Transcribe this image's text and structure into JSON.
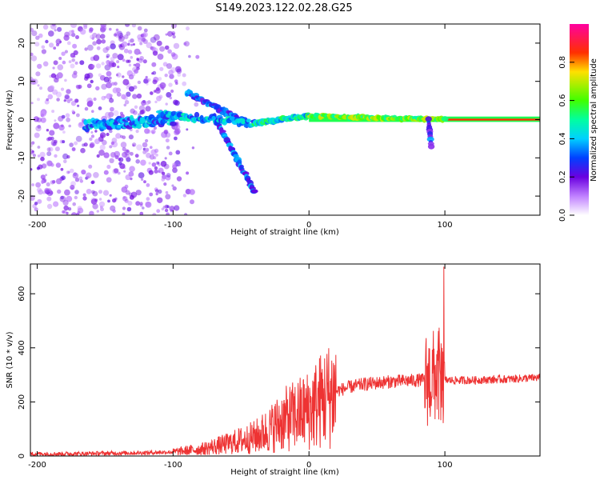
{
  "title": "S149.2023.122.02.28.G25",
  "chart_data": [
    {
      "type": "heatmap",
      "xlabel": "Height of straight line (km)",
      "ylabel": "Frequency (Hz)",
      "xlim": [
        -205,
        170
      ],
      "ylim": [
        -25,
        25
      ],
      "x_ticks": [
        -200,
        -100,
        0,
        100
      ],
      "y_ticks": [
        -20,
        -10,
        0,
        10,
        20
      ],
      "colorbar": {
        "label": "Normalized spectral amplitude",
        "range": [
          0,
          1
        ],
        "ticks": [
          "0.0",
          "0.2",
          "0.4",
          "0.6",
          "0.8"
        ],
        "colormap": "white-purple-blue-cyan-green-yellow-red-magenta"
      },
      "features": [
        {
          "name": "carrier",
          "x": [
            0,
            170
          ],
          "frequency": [
            1,
            0
          ],
          "amplitude": 0.85
        },
        {
          "name": "carrier-onset",
          "x": [
            -40,
            0
          ],
          "frequency": [
            -1,
            1
          ],
          "amplitude": 0.45
        },
        {
          "name": "branch-upper",
          "x": [
            -90,
            -45
          ],
          "frequency": [
            7,
            -1
          ],
          "amplitude": 0.3
        },
        {
          "name": "branch-lower",
          "x": [
            -70,
            -40
          ],
          "frequency": [
            1,
            -19
          ],
          "amplitude": 0.3
        },
        {
          "name": "low-altitude-scatter",
          "x": [
            -205,
            -100
          ],
          "frequency": [
            -25,
            25
          ],
          "amplitude": 0.1
        }
      ]
    },
    {
      "type": "line",
      "xlabel": "Height of straight line (km)",
      "ylabel": "SNR (10 * v/v)",
      "xlim": [
        -205,
        170
      ],
      "ylim": [
        0,
        710
      ],
      "x_ticks": [
        -200,
        -100,
        0,
        100
      ],
      "y_ticks": [
        0,
        200,
        400,
        600
      ],
      "color": "#ee3333",
      "x": [
        -205,
        -180,
        -150,
        -120,
        -100,
        -80,
        -60,
        -40,
        -30,
        -20,
        -10,
        0,
        10,
        20,
        30,
        40,
        60,
        80,
        90,
        95,
        100,
        120,
        150,
        170
      ],
      "values": [
        8,
        8,
        10,
        12,
        15,
        25,
        45,
        70,
        95,
        130,
        150,
        170,
        210,
        240,
        255,
        265,
        275,
        280,
        285,
        300,
        280,
        280,
        285,
        290
      ]
    }
  ]
}
